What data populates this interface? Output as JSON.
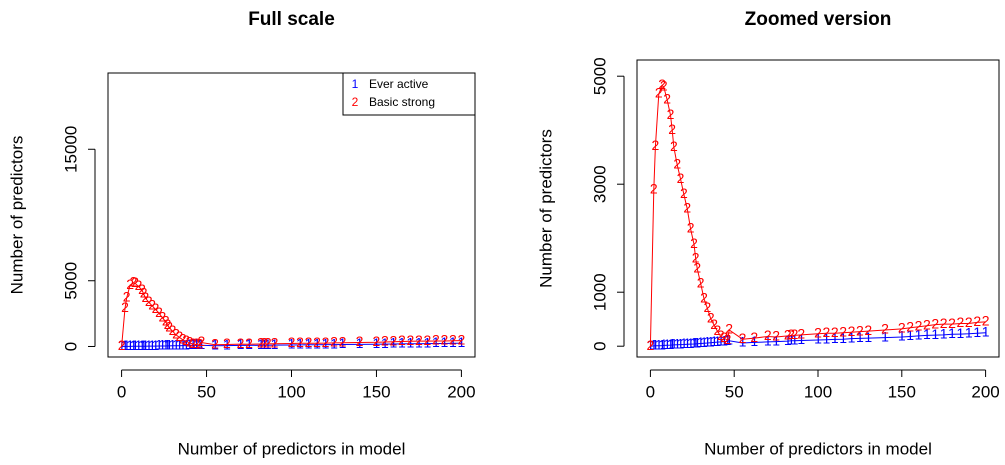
{
  "chart_data": [
    {
      "type": "line",
      "title": "Full scale",
      "x_label": "Number of predictors in model",
      "y_label": "Number of predictors",
      "x": [
        0,
        2,
        3,
        5,
        7,
        8,
        10,
        12,
        13,
        14,
        16,
        18,
        20,
        22,
        24,
        26,
        27,
        28,
        30,
        32,
        34,
        36,
        38,
        40,
        42,
        44,
        46,
        47,
        55,
        62,
        70,
        75,
        82,
        84,
        86,
        90,
        100,
        105,
        110,
        115,
        120,
        125,
        130,
        140,
        150,
        155,
        160,
        165,
        170,
        175,
        180,
        185,
        190,
        195,
        200
      ],
      "series": [
        {
          "name": "Ever active",
          "marker": "1",
          "color": "#0000ff",
          "values": [
            0,
            5,
            8,
            10,
            12,
            15,
            18,
            20,
            22,
            25,
            28,
            30,
            32,
            35,
            38,
            40,
            42,
            45,
            50,
            55,
            60,
            65,
            70,
            75,
            80,
            85,
            90,
            100,
            60,
            70,
            80,
            85,
            95,
            100,
            100,
            105,
            115,
            120,
            125,
            130,
            140,
            145,
            150,
            160,
            170,
            180,
            190,
            200,
            205,
            210,
            220,
            225,
            230,
            240,
            250
          ]
        },
        {
          "name": "Basic strong",
          "marker": "2",
          "color": "#ff0000",
          "values": [
            0,
            2900,
            3700,
            4670,
            4830,
            4800,
            4560,
            4280,
            4000,
            3680,
            3360,
            3090,
            2810,
            2540,
            2170,
            1890,
            1620,
            1430,
            1160,
            880,
            700,
            510,
            390,
            280,
            180,
            150,
            110,
            300,
            130,
            150,
            180,
            170,
            190,
            200,
            200,
            210,
            230,
            240,
            240,
            250,
            260,
            270,
            280,
            300,
            320,
            340,
            360,
            380,
            400,
            410,
            410,
            420,
            420,
            440,
            450
          ]
        }
      ],
      "xlim": [
        -8,
        208
      ],
      "ylim": [
        -800,
        20800
      ],
      "xticks": [
        0,
        50,
        100,
        150,
        200
      ],
      "yticks": [
        0,
        5000,
        15000
      ],
      "legend": "topright"
    },
    {
      "type": "line",
      "title": "Zoomed version",
      "x_label": "Number of predictors in model",
      "y_label": "Number of predictors",
      "x": [
        0,
        2,
        3,
        5,
        7,
        8,
        10,
        12,
        13,
        14,
        16,
        18,
        20,
        22,
        24,
        26,
        27,
        28,
        30,
        32,
        34,
        36,
        38,
        40,
        42,
        44,
        46,
        47,
        55,
        62,
        70,
        75,
        82,
        84,
        86,
        90,
        100,
        105,
        110,
        115,
        120,
        125,
        130,
        140,
        150,
        155,
        160,
        165,
        170,
        175,
        180,
        185,
        190,
        195,
        200
      ],
      "series": [
        {
          "name": "Ever active",
          "marker": "1",
          "color": "#0000ff",
          "values": [
            0,
            5,
            8,
            10,
            12,
            15,
            18,
            20,
            22,
            25,
            28,
            30,
            32,
            35,
            38,
            40,
            42,
            45,
            50,
            55,
            60,
            65,
            70,
            75,
            80,
            85,
            90,
            100,
            60,
            70,
            80,
            85,
            95,
            100,
            100,
            105,
            115,
            120,
            125,
            130,
            140,
            145,
            150,
            160,
            170,
            180,
            190,
            200,
            205,
            210,
            220,
            225,
            230,
            240,
            250
          ]
        },
        {
          "name": "Basic strong",
          "marker": "2",
          "color": "#ff0000",
          "values": [
            0,
            2900,
            3700,
            4670,
            4830,
            4800,
            4560,
            4280,
            4000,
            3680,
            3360,
            3090,
            2810,
            2540,
            2170,
            1890,
            1620,
            1430,
            1160,
            880,
            700,
            510,
            390,
            280,
            180,
            150,
            110,
            300,
            130,
            150,
            180,
            170,
            190,
            200,
            200,
            210,
            230,
            240,
            240,
            250,
            260,
            270,
            280,
            300,
            320,
            340,
            360,
            380,
            400,
            410,
            410,
            420,
            420,
            440,
            450
          ]
        }
      ],
      "xlim": [
        -8,
        208
      ],
      "ylim": [
        -200,
        5300
      ],
      "xticks": [
        0,
        50,
        100,
        150,
        200
      ],
      "yticks": [
        0,
        1000,
        3000,
        5000
      ]
    }
  ]
}
